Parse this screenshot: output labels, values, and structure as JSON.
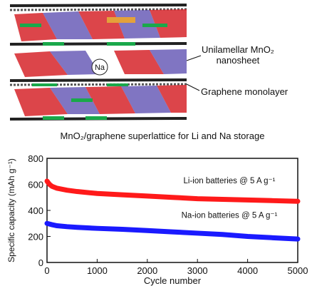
{
  "figure": {
    "labels": {
      "nanosheet_line1": "Unilamellar MnO₂",
      "nanosheet_line2": "nanosheet",
      "graphene": "Graphene monolayer",
      "caption": "MnO₂/graphene superlattice for Li and Na storage",
      "na_ion": "Na"
    },
    "colors": {
      "mno2_octahedra": "#d6242a",
      "mn_atoms": "#4a3aa8",
      "graphene": "#2a2a2a",
      "li_ions": "#1aa84a",
      "li_series": "#ff1a1a",
      "na_series": "#1a1aff"
    }
  },
  "chart_data": {
    "type": "line",
    "xlabel": "Cycle number",
    "ylabel": "Specific capacity (mAh g⁻¹)",
    "xlim": [
      0,
      5000
    ],
    "ylim": [
      0,
      800
    ],
    "xticks": [
      0,
      1000,
      2000,
      3000,
      4000,
      5000
    ],
    "yticks": [
      0,
      200,
      400,
      600,
      800
    ],
    "grid": false,
    "series": [
      {
        "name": "Li-ion batteries @ 5 A g⁻¹",
        "color": "#ff1a1a",
        "x": [
          0,
          50,
          100,
          200,
          400,
          600,
          1000,
          1500,
          2000,
          2500,
          3000,
          3500,
          4000,
          4500,
          5000
        ],
        "y": [
          625,
          600,
          585,
          570,
          555,
          545,
          530,
          520,
          510,
          500,
          490,
          485,
          480,
          475,
          470
        ]
      },
      {
        "name": "Na-ion batteries @ 5 A g⁻¹",
        "color": "#1a1aff",
        "x": [
          0,
          50,
          100,
          200,
          400,
          600,
          1000,
          1500,
          2000,
          2500,
          3000,
          3500,
          4000,
          4500,
          5000
        ],
        "y": [
          300,
          295,
          290,
          282,
          275,
          270,
          262,
          255,
          245,
          235,
          225,
          215,
          200,
          190,
          180
        ]
      }
    ]
  }
}
